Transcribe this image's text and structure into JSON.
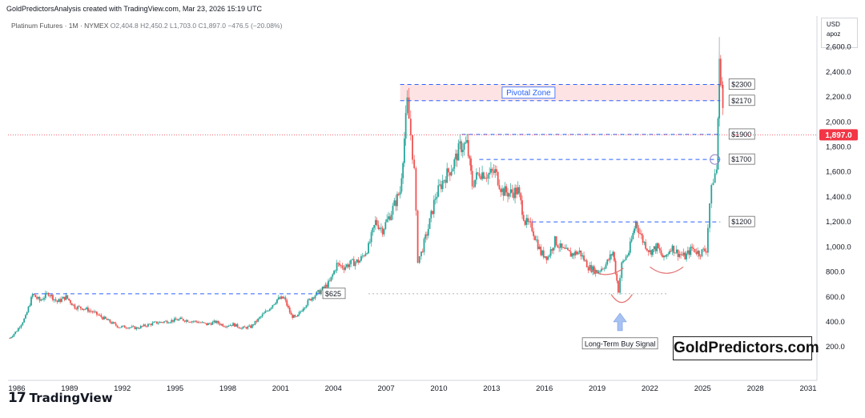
{
  "header": {
    "attribution": "GoldPredictorsAnalysis created with TradingView.com, Mar 23, 2026 15:19 UTC"
  },
  "instrument": {
    "name": "Platinum Futures · 1M · NYMEX",
    "open": "O2,404.8",
    "high": "H2,450.2",
    "low": "L1,703.0",
    "close": "C1,897.0",
    "change": "−476.5 (−20.08%)"
  },
  "currency_box": {
    "currency": "USD",
    "mode": "apoz"
  },
  "footer": {
    "logo_text": "TradingView"
  },
  "watermark": "GoldPredictors.com",
  "colors": {
    "up": "#26a69a",
    "down": "#ef5350",
    "level": "#2962ff",
    "price_tag": "#f23645",
    "zone": "#fde3e3",
    "arc": "#e57373",
    "arrow": "#a7c1f2"
  },
  "chart_data": {
    "type": "candlestick",
    "title": "",
    "xlabel": "",
    "ylabel": "",
    "x_ticks": [
      "1986",
      "1989",
      "1992",
      "1995",
      "1998",
      "2001",
      "2004",
      "2007",
      "2010",
      "2013",
      "2016",
      "2019",
      "2022",
      "2025",
      "2028",
      "2031"
    ],
    "y_ticks": [
      "200.0",
      "400.0",
      "600.0",
      "800.0",
      "1,000.0",
      "1,200.0",
      "1,400.0",
      "1,600.0",
      "1,800.0",
      "2,000.0",
      "2,200.0",
      "2,400.0",
      "2,600.0"
    ],
    "xlim": [
      1985.5,
      2031.5
    ],
    "ylim": [
      60,
      2720
    ],
    "current_price": {
      "value": 1897.0,
      "label": "1,897.0"
    },
    "series": [
      {
        "name": "",
        "points": [
          [
            1985.6,
            270
          ],
          [
            1986.0,
            330
          ],
          [
            1986.5,
            440
          ],
          [
            1986.9,
            620
          ],
          [
            1987.3,
            570
          ],
          [
            1987.8,
            630
          ],
          [
            1988.3,
            560
          ],
          [
            1988.8,
            600
          ],
          [
            1989.3,
            520
          ],
          [
            1989.8,
            510
          ],
          [
            1990.3,
            480
          ],
          [
            1990.8,
            440
          ],
          [
            1991.3,
            400
          ],
          [
            1991.8,
            360
          ],
          [
            1992.3,
            360
          ],
          [
            1992.8,
            350
          ],
          [
            1993.3,
            370
          ],
          [
            1993.8,
            390
          ],
          [
            1994.3,
            400
          ],
          [
            1994.8,
            410
          ],
          [
            1995.3,
            420
          ],
          [
            1995.8,
            410
          ],
          [
            1996.3,
            400
          ],
          [
            1996.8,
            380
          ],
          [
            1997.3,
            400
          ],
          [
            1997.8,
            370
          ],
          [
            1998.3,
            380
          ],
          [
            1998.8,
            350
          ],
          [
            1999.3,
            360
          ],
          [
            1999.8,
            430
          ],
          [
            2000.3,
            500
          ],
          [
            2000.8,
            580
          ],
          [
            2001.2,
            590
          ],
          [
            2001.6,
            450
          ],
          [
            2001.9,
            430
          ],
          [
            2002.3,
            520
          ],
          [
            2002.8,
            600
          ],
          [
            2003.3,
            650
          ],
          [
            2003.8,
            720
          ],
          [
            2004.2,
            860
          ],
          [
            2004.6,
            840
          ],
          [
            2005.0,
            870
          ],
          [
            2005.5,
            890
          ],
          [
            2006.0,
            1000
          ],
          [
            2006.4,
            1200
          ],
          [
            2006.8,
            1140
          ],
          [
            2007.3,
            1280
          ],
          [
            2007.8,
            1450
          ],
          [
            2008.2,
            2150
          ],
          [
            2008.4,
            1900
          ],
          [
            2008.6,
            1600
          ],
          [
            2008.8,
            900
          ],
          [
            2009.0,
            950
          ],
          [
            2009.4,
            1150
          ],
          [
            2009.8,
            1400
          ],
          [
            2010.3,
            1550
          ],
          [
            2010.8,
            1650
          ],
          [
            2011.2,
            1800
          ],
          [
            2011.6,
            1820
          ],
          [
            2011.9,
            1500
          ],
          [
            2012.3,
            1600
          ],
          [
            2012.8,
            1580
          ],
          [
            2013.2,
            1600
          ],
          [
            2013.6,
            1450
          ],
          [
            2014.0,
            1430
          ],
          [
            2014.5,
            1450
          ],
          [
            2014.9,
            1200
          ],
          [
            2015.3,
            1150
          ],
          [
            2015.8,
            950
          ],
          [
            2016.2,
            920
          ],
          [
            2016.6,
            1050
          ],
          [
            2017.0,
            980
          ],
          [
            2017.5,
            940
          ],
          [
            2018.0,
            960
          ],
          [
            2018.5,
            840
          ],
          [
            2019.0,
            800
          ],
          [
            2019.5,
            860
          ],
          [
            2019.9,
            960
          ],
          [
            2020.2,
            650
          ],
          [
            2020.4,
            860
          ],
          [
            2020.8,
            960
          ],
          [
            2021.2,
            1200
          ],
          [
            2021.6,
            1050
          ],
          [
            2022.0,
            960
          ],
          [
            2022.4,
            1000
          ],
          [
            2022.8,
            900
          ],
          [
            2023.2,
            1000
          ],
          [
            2023.6,
            950
          ],
          [
            2024.0,
            920
          ],
          [
            2024.4,
            990
          ],
          [
            2024.8,
            950
          ],
          [
            2025.2,
            980
          ],
          [
            2025.4,
            1350
          ],
          [
            2025.6,
            1550
          ],
          [
            2025.8,
            1620
          ],
          [
            2025.95,
            2450
          ],
          [
            2026.1,
            2300
          ],
          [
            2026.2,
            1897
          ]
        ]
      }
    ],
    "levels": [
      {
        "label": "$2300",
        "value": 2300
      },
      {
        "label": "$2170",
        "value": 2170
      },
      {
        "label": "$1900",
        "value": 1900
      },
      {
        "label": "$1700",
        "value": 1700
      },
      {
        "label": "$1200",
        "value": 1200
      },
      {
        "label": "$625",
        "value": 625
      }
    ],
    "annotations": [
      {
        "text": "Pivotal Zone",
        "range": [
          2170,
          2300
        ]
      },
      {
        "text": "Long-Term Buy Signal"
      }
    ]
  }
}
